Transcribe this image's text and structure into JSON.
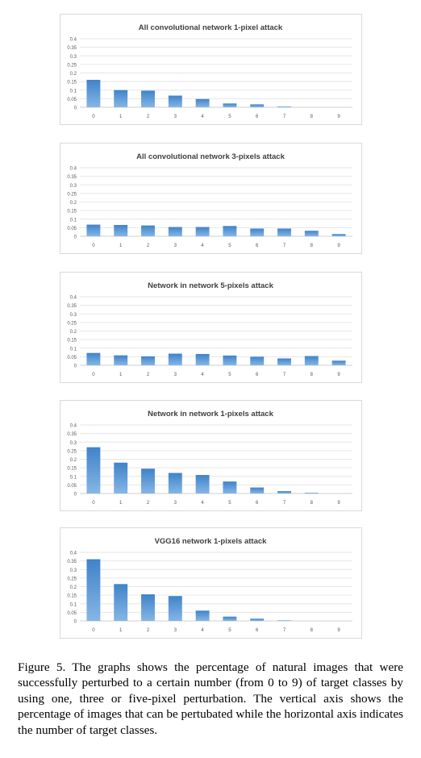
{
  "chart_data": [
    {
      "type": "bar",
      "title": "All convolutional network 1-pixel attack",
      "categories": [
        "0",
        "1",
        "2",
        "3",
        "4",
        "5",
        "6",
        "7",
        "8",
        "9"
      ],
      "values": [
        0.16,
        0.1,
        0.097,
        0.068,
        0.048,
        0.022,
        0.017,
        0.004,
        0,
        0
      ],
      "yticks": [
        "0",
        "0.05",
        "0.1",
        "0.15",
        "0.2",
        "0.25",
        "0.3",
        "0.35",
        "0.4"
      ],
      "ylim": [
        0,
        0.4
      ],
      "grid": true,
      "bar_color": "#5b9bd5"
    },
    {
      "type": "bar",
      "title": "All convolutional network 3-pixels attack",
      "categories": [
        "0",
        "1",
        "2",
        "3",
        "4",
        "5",
        "6",
        "7",
        "8",
        "9"
      ],
      "values": [
        0.068,
        0.066,
        0.063,
        0.054,
        0.054,
        0.06,
        0.045,
        0.045,
        0.032,
        0.013
      ],
      "yticks": [
        "0",
        "0.05",
        "0.1",
        "0.15",
        "0.2",
        "0.25",
        "0.3",
        "0.35",
        "0.4"
      ],
      "ylim": [
        0,
        0.4
      ],
      "grid": true,
      "bar_color": "#5b9bd5"
    },
    {
      "type": "bar",
      "title": "Network in network 5-pixels attack",
      "categories": [
        "0",
        "1",
        "2",
        "3",
        "4",
        "5",
        "6",
        "7",
        "8",
        "9"
      ],
      "values": [
        0.072,
        0.058,
        0.052,
        0.068,
        0.066,
        0.057,
        0.05,
        0.04,
        0.054,
        0.027
      ],
      "yticks": [
        "0",
        "0.05",
        "0.1",
        "0.15",
        "0.2",
        "0.25",
        "0.3",
        "0.35",
        "0.4"
      ],
      "ylim": [
        0,
        0.4
      ],
      "grid": true,
      "bar_color": "#5b9bd5"
    },
    {
      "type": "bar",
      "title": "Network in network 1-pixels attack",
      "categories": [
        "0",
        "1",
        "2",
        "3",
        "4",
        "5",
        "6",
        "7",
        "8",
        "9"
      ],
      "values": [
        0.27,
        0.18,
        0.145,
        0.12,
        0.108,
        0.07,
        0.035,
        0.014,
        0.004,
        0
      ],
      "yticks": [
        "0",
        "0.05",
        "0.1",
        "0.15",
        "0.2",
        "0.25",
        "0.3",
        "0.35",
        "0.4"
      ],
      "ylim": [
        0,
        0.4
      ],
      "grid": true,
      "bar_color": "#5b9bd5"
    },
    {
      "type": "bar",
      "title": "VGG16 network 1-pixels attack",
      "categories": [
        "0",
        "1",
        "2",
        "3",
        "4",
        "5",
        "6",
        "7",
        "8",
        "9"
      ],
      "values": [
        0.36,
        0.215,
        0.155,
        0.145,
        0.06,
        0.025,
        0.013,
        0.003,
        0,
        0
      ],
      "yticks": [
        "0",
        "0.05",
        "0.1",
        "0.15",
        "0.2",
        "0.25",
        "0.3",
        "0.35",
        "0.4"
      ],
      "ylim": [
        0,
        0.4
      ],
      "grid": true,
      "bar_color": "#5b9bd5"
    }
  ],
  "caption": "Figure 5. The graphs shows the percentage of natural images that were successfully perturbed to a certain number (from 0 to 9) of target classes by using one, three or five-pixel perturbation. The vertical axis shows the percentage of images that can be pertubated while the horizontal axis indicates the number of target classes."
}
